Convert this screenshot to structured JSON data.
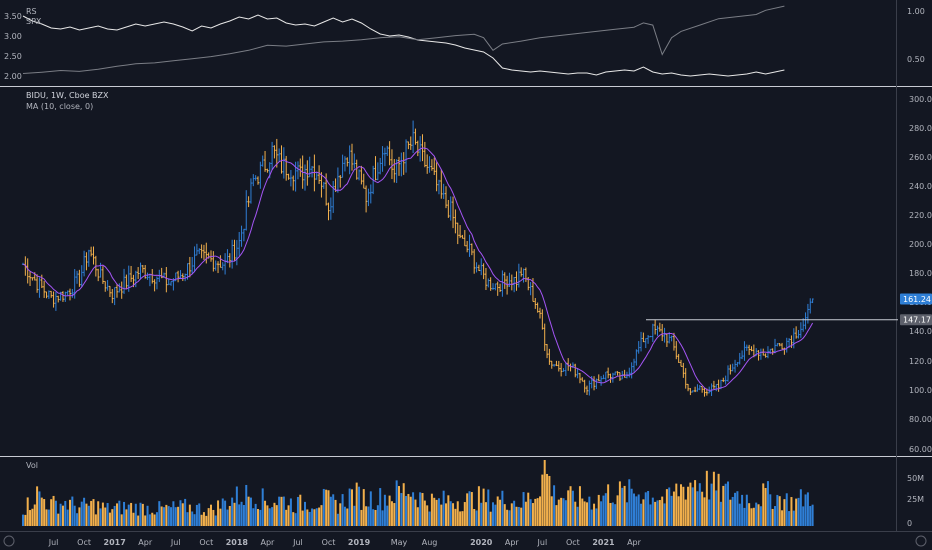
{
  "chart_data": [
    {
      "type": "line",
      "title": "",
      "legend": [
        "RS",
        "SPX"
      ],
      "left_axis_ticks": [
        "3.50",
        "3.00",
        "2.50",
        "2.00"
      ],
      "right_axis_ticks": [
        "1.00",
        "0.50"
      ],
      "left_range": [
        1.8,
        3.7
      ],
      "right_range": [
        0.3,
        1.1
      ],
      "series": [
        {
          "name": "RS",
          "axis": "right",
          "color": "#e8e8e8",
          "points": [
            [
              0,
              0.98
            ],
            [
              4,
              0.93
            ],
            [
              8,
              0.9
            ],
            [
              12,
              0.86
            ],
            [
              16,
              0.85
            ],
            [
              20,
              0.87
            ],
            [
              24,
              0.84
            ],
            [
              28,
              0.86
            ],
            [
              32,
              0.88
            ],
            [
              36,
              0.85
            ],
            [
              40,
              0.84
            ],
            [
              44,
              0.87
            ],
            [
              48,
              0.9
            ],
            [
              52,
              0.88
            ],
            [
              56,
              0.9
            ],
            [
              60,
              0.92
            ],
            [
              64,
              0.9
            ],
            [
              68,
              0.87
            ],
            [
              72,
              0.83
            ],
            [
              76,
              0.88
            ],
            [
              80,
              0.86
            ],
            [
              84,
              0.9
            ],
            [
              88,
              0.93
            ],
            [
              92,
              0.97
            ],
            [
              96,
              0.95
            ],
            [
              100,
              0.99
            ],
            [
              104,
              0.95
            ],
            [
              108,
              0.96
            ],
            [
              112,
              0.91
            ],
            [
              116,
              0.89
            ],
            [
              120,
              0.9
            ],
            [
              124,
              0.88
            ],
            [
              128,
              0.92
            ],
            [
              132,
              0.96
            ],
            [
              136,
              0.92
            ],
            [
              140,
              0.95
            ],
            [
              144,
              0.91
            ],
            [
              148,
              0.85
            ],
            [
              152,
              0.8
            ],
            [
              156,
              0.78
            ],
            [
              160,
              0.79
            ],
            [
              164,
              0.77
            ],
            [
              168,
              0.74
            ],
            [
              172,
              0.73
            ],
            [
              176,
              0.72
            ],
            [
              180,
              0.71
            ],
            [
              184,
              0.69
            ],
            [
              188,
              0.66
            ],
            [
              192,
              0.64
            ],
            [
              196,
              0.62
            ],
            [
              200,
              0.56
            ],
            [
              204,
              0.46
            ],
            [
              208,
              0.44
            ],
            [
              212,
              0.43
            ],
            [
              216,
              0.42
            ],
            [
              220,
              0.43
            ],
            [
              224,
              0.42
            ],
            [
              228,
              0.41
            ],
            [
              232,
              0.4
            ],
            [
              236,
              0.41
            ],
            [
              240,
              0.41
            ],
            [
              244,
              0.39
            ],
            [
              248,
              0.42
            ],
            [
              252,
              0.43
            ],
            [
              256,
              0.44
            ],
            [
              260,
              0.43
            ],
            [
              264,
              0.47
            ],
            [
              268,
              0.42
            ],
            [
              272,
              0.4
            ],
            [
              276,
              0.41
            ],
            [
              280,
              0.39
            ],
            [
              284,
              0.38
            ],
            [
              288,
              0.39
            ],
            [
              292,
              0.4
            ],
            [
              296,
              0.39
            ],
            [
              300,
              0.38
            ],
            [
              304,
              0.39
            ],
            [
              308,
              0.4
            ],
            [
              312,
              0.42
            ],
            [
              316,
              0.4
            ],
            [
              320,
              0.42
            ],
            [
              324,
              0.44
            ]
          ]
        },
        {
          "name": "SPX",
          "axis": "left",
          "color": "#7a7d85",
          "points": [
            [
              0,
              2.05
            ],
            [
              8,
              2.08
            ],
            [
              16,
              2.12
            ],
            [
              24,
              2.1
            ],
            [
              32,
              2.15
            ],
            [
              40,
              2.22
            ],
            [
              48,
              2.28
            ],
            [
              56,
              2.3
            ],
            [
              64,
              2.35
            ],
            [
              72,
              2.4
            ],
            [
              80,
              2.45
            ],
            [
              88,
              2.52
            ],
            [
              96,
              2.6
            ],
            [
              104,
              2.72
            ],
            [
              112,
              2.7
            ],
            [
              120,
              2.75
            ],
            [
              128,
              2.8
            ],
            [
              136,
              2.82
            ],
            [
              144,
              2.85
            ],
            [
              152,
              2.9
            ],
            [
              160,
              2.92
            ],
            [
              168,
              2.85
            ],
            [
              176,
              2.9
            ],
            [
              184,
              2.95
            ],
            [
              192,
              2.98
            ],
            [
              196,
              2.9
            ],
            [
              200,
              2.6
            ],
            [
              204,
              2.75
            ],
            [
              212,
              2.82
            ],
            [
              220,
              2.9
            ],
            [
              228,
              2.95
            ],
            [
              236,
              3.0
            ],
            [
              244,
              3.05
            ],
            [
              252,
              3.1
            ],
            [
              260,
              3.15
            ],
            [
              264,
              3.25
            ],
            [
              268,
              3.2
            ],
            [
              272,
              2.5
            ],
            [
              276,
              2.9
            ],
            [
              280,
              3.05
            ],
            [
              288,
              3.2
            ],
            [
              296,
              3.35
            ],
            [
              304,
              3.4
            ],
            [
              312,
              3.45
            ],
            [
              316,
              3.55
            ],
            [
              324,
              3.65
            ]
          ]
        }
      ]
    },
    {
      "type": "candlestick",
      "title": "BIDU, 1W, Cboe BZX",
      "subtitle": "MA (10, close, 0)",
      "ylim": [
        55,
        305
      ],
      "y_ticks": [
        "300.00",
        "280.00",
        "260.00",
        "240.00",
        "220.00",
        "200.00",
        "180.00",
        "160.00",
        "140.00",
        "120.00",
        "100.00",
        "80.00",
        "60.00"
      ],
      "price_label": "161.24",
      "level_label": "147.17",
      "level_value": 147.17,
      "last_close": 161.24,
      "up_color": "#2f7fd6",
      "down_color": "#f2b04c",
      "ma_color": "#a455f5",
      "close_anchors": [
        [
          0,
          185
        ],
        [
          6,
          172
        ],
        [
          12,
          162
        ],
        [
          18,
          165
        ],
        [
          24,
          175
        ],
        [
          28,
          195
        ],
        [
          33,
          176
        ],
        [
          38,
          165
        ],
        [
          44,
          173
        ],
        [
          50,
          181
        ],
        [
          56,
          177
        ],
        [
          62,
          172
        ],
        [
          68,
          179
        ],
        [
          74,
          190
        ],
        [
          80,
          188
        ],
        [
          86,
          185
        ],
        [
          92,
          200
        ],
        [
          98,
          242
        ],
        [
          102,
          250
        ],
        [
          106,
          262
        ],
        [
          110,
          252
        ],
        [
          114,
          250
        ],
        [
          118,
          246
        ],
        [
          122,
          253
        ],
        [
          126,
          246
        ],
        [
          130,
          226
        ],
        [
          134,
          246
        ],
        [
          138,
          262
        ],
        [
          142,
          246
        ],
        [
          146,
          231
        ],
        [
          150,
          249
        ],
        [
          154,
          268
        ],
        [
          158,
          246
        ],
        [
          162,
          260
        ],
        [
          166,
          268
        ],
        [
          170,
          256
        ],
        [
          174,
          246
        ],
        [
          178,
          231
        ],
        [
          182,
          221
        ],
        [
          186,
          201
        ],
        [
          190,
          194
        ],
        [
          194,
          181
        ],
        [
          198,
          172
        ],
        [
          202,
          171
        ],
        [
          206,
          175
        ],
        [
          210,
          174
        ],
        [
          212,
          180
        ],
        [
          214,
          174
        ],
        [
          218,
          159
        ],
        [
          220,
          148
        ],
        [
          224,
          119
        ],
        [
          228,
          115
        ],
        [
          232,
          116
        ],
        [
          236,
          111
        ],
        [
          240,
          101
        ],
        [
          244,
          106
        ],
        [
          248,
          110
        ],
        [
          252,
          109
        ],
        [
          256,
          106
        ],
        [
          260,
          121
        ],
        [
          264,
          134
        ],
        [
          268,
          140
        ],
        [
          272,
          138
        ],
        [
          276,
          132
        ],
        [
          280,
          115
        ],
        [
          284,
          96
        ],
        [
          288,
          101
        ],
        [
          292,
          99
        ],
        [
          296,
          101
        ],
        [
          300,
          111
        ],
        [
          304,
          121
        ],
        [
          308,
          126
        ],
        [
          312,
          126
        ],
        [
          316,
          124
        ],
        [
          320,
          129
        ],
        [
          324,
          131
        ],
        [
          328,
          137
        ],
        [
          332,
          144
        ],
        [
          334,
          150
        ],
        [
          336,
          161.24
        ]
      ],
      "volume_data": {
        "title": "Vol",
        "y_ticks": [
          "50M",
          "25M",
          "0"
        ],
        "ymax": 62,
        "anchors": [
          [
            0,
            15
          ],
          [
            6,
            30
          ],
          [
            12,
            20
          ],
          [
            18,
            22
          ],
          [
            24,
            18
          ],
          [
            30,
            20
          ],
          [
            36,
            16
          ],
          [
            44,
            18
          ],
          [
            52,
            17
          ],
          [
            60,
            16
          ],
          [
            70,
            18
          ],
          [
            80,
            15
          ],
          [
            86,
            22
          ],
          [
            92,
            28
          ],
          [
            98,
            30
          ],
          [
            104,
            22
          ],
          [
            110,
            25
          ],
          [
            116,
            20
          ],
          [
            122,
            22
          ],
          [
            128,
            25
          ],
          [
            134,
            20
          ],
          [
            140,
            30
          ],
          [
            146,
            26
          ],
          [
            152,
            26
          ],
          [
            158,
            30
          ],
          [
            164,
            35
          ],
          [
            170,
            26
          ],
          [
            176,
            22
          ],
          [
            182,
            25
          ],
          [
            188,
            24
          ],
          [
            194,
            26
          ],
          [
            200,
            24
          ],
          [
            206,
            25
          ],
          [
            212,
            22
          ],
          [
            218,
            30
          ],
          [
            222,
            55
          ],
          [
            226,
            30
          ],
          [
            232,
            26
          ],
          [
            238,
            26
          ],
          [
            244,
            24
          ],
          [
            250,
            32
          ],
          [
            256,
            30
          ],
          [
            262,
            32
          ],
          [
            268,
            30
          ],
          [
            274,
            24
          ],
          [
            280,
            36
          ],
          [
            286,
            42
          ],
          [
            292,
            38
          ],
          [
            298,
            32
          ],
          [
            304,
            30
          ],
          [
            310,
            24
          ],
          [
            316,
            30
          ],
          [
            322,
            26
          ],
          [
            328,
            22
          ],
          [
            336,
            30
          ]
        ]
      },
      "x_axis_labels": [
        {
          "label": "Jul",
          "week": 13
        },
        {
          "label": "Oct",
          "week": 26
        },
        {
          "label": "2017",
          "week": 39
        },
        {
          "label": "Apr",
          "week": 52
        },
        {
          "label": "Jul",
          "week": 65
        },
        {
          "label": "Oct",
          "week": 78
        },
        {
          "label": "2018",
          "week": 91
        },
        {
          "label": "Apr",
          "week": 104
        },
        {
          "label": "Jul",
          "week": 117
        },
        {
          "label": "Oct",
          "week": 130
        },
        {
          "label": "2019",
          "week": 143
        },
        {
          "label": "May",
          "week": 160
        },
        {
          "label": "Aug",
          "week": 173
        },
        {
          "label": "2020",
          "week": 195
        },
        {
          "label": "Apr",
          "week": 208
        },
        {
          "label": "Jul",
          "week": 221
        },
        {
          "label": "Oct",
          "week": 234
        },
        {
          "label": "2021",
          "week": 247
        },
        {
          "label": "Apr",
          "week": 260
        }
      ]
    }
  ]
}
